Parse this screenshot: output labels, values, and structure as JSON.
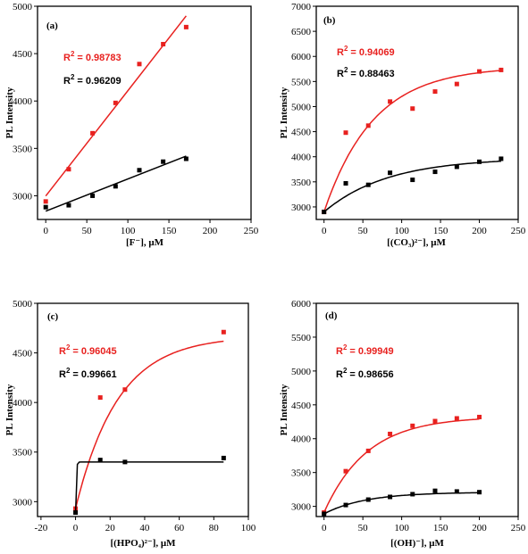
{
  "chart_data": [
    {
      "type": "scatter",
      "panel": "(a)",
      "xlabel": "[F⁻], μM",
      "ylabel": "PL Intensity",
      "xlim": [
        -10,
        250
      ],
      "ylim": [
        2750,
        5000
      ],
      "xticks": [
        0,
        50,
        100,
        150,
        200,
        250
      ],
      "yticks": [
        3000,
        3500,
        4000,
        4500,
        5000
      ],
      "fit": "linear",
      "series": [
        {
          "color": "#e8211f",
          "r2": "= 0.98783",
          "x": [
            0,
            28,
            57,
            85,
            114,
            143,
            171
          ],
          "y": [
            2940,
            3280,
            3660,
            3980,
            4390,
            4600,
            4780
          ]
        },
        {
          "color": "#000000",
          "r2": "= 0.96209",
          "x": [
            0,
            28,
            57,
            85,
            114,
            143,
            171
          ],
          "y": [
            2880,
            2900,
            3000,
            3100,
            3270,
            3360,
            3390
          ]
        }
      ]
    },
    {
      "type": "scatter",
      "panel": "(b)",
      "xlabel": "[(CO₃)²⁻], μM",
      "ylabel": "PL Intensity",
      "xlim": [
        -10,
        250
      ],
      "ylim": [
        2750,
        7000
      ],
      "xticks": [
        0,
        50,
        100,
        150,
        200,
        250
      ],
      "yticks": [
        3000,
        3500,
        4000,
        4500,
        5000,
        5500,
        6000,
        6500,
        7000
      ],
      "fit": "exponential",
      "series": [
        {
          "color": "#e8211f",
          "r2": "= 0.94069",
          "x": [
            0,
            28,
            57,
            85,
            114,
            143,
            171,
            200,
            228
          ],
          "y": [
            2900,
            4480,
            4620,
            5100,
            4960,
            5300,
            5450,
            5700,
            5730
          ]
        },
        {
          "color": "#000000",
          "r2": "= 0.88463",
          "x": [
            0,
            28,
            57,
            85,
            114,
            143,
            171,
            200,
            228
          ],
          "y": [
            2900,
            3470,
            3440,
            3680,
            3540,
            3700,
            3800,
            3900,
            3960
          ]
        }
      ]
    },
    {
      "type": "scatter",
      "panel": "(c)",
      "xlabel": "[(HPO₄)²⁻], μM",
      "ylabel": "PL Intensity",
      "xlim": [
        -22,
        100
      ],
      "ylim": [
        2850,
        5000
      ],
      "xticks": [
        -20,
        0,
        20,
        40,
        60,
        80,
        100
      ],
      "yticks": [
        3000,
        3500,
        4000,
        4500,
        5000
      ],
      "fit": "exponential",
      "series": [
        {
          "color": "#e8211f",
          "r2": "= 0.96045",
          "x": [
            0,
            14.3,
            28.6,
            85.7
          ],
          "y": [
            2930,
            4050,
            4130,
            4710
          ]
        },
        {
          "color": "#000000",
          "r2": "= 0.99661",
          "x": [
            0,
            14.3,
            28.6,
            85.7
          ],
          "y": [
            2890,
            3420,
            3400,
            3440
          ]
        }
      ]
    },
    {
      "type": "scatter",
      "panel": "(d)",
      "xlabel": "[(OH)⁻], μM",
      "ylabel": "PL Intensity",
      "xlim": [
        -10,
        250
      ],
      "ylim": [
        2850,
        6000
      ],
      "xticks": [
        0,
        50,
        100,
        150,
        200,
        250
      ],
      "yticks": [
        3000,
        3500,
        4000,
        4500,
        5000,
        5500,
        6000
      ],
      "fit": "exponential",
      "series": [
        {
          "color": "#e8211f",
          "r2": "= 0.99949",
          "x": [
            0,
            28,
            57,
            85,
            114,
            143,
            171,
            200
          ],
          "y": [
            2910,
            3520,
            3820,
            4070,
            4190,
            4260,
            4300,
            4320
          ]
        },
        {
          "color": "#000000",
          "r2": "= 0.98656",
          "x": [
            0,
            28,
            57,
            85,
            114,
            143,
            171,
            200
          ],
          "y": [
            2890,
            3020,
            3100,
            3140,
            3180,
            3230,
            3220,
            3210
          ]
        }
      ]
    }
  ]
}
